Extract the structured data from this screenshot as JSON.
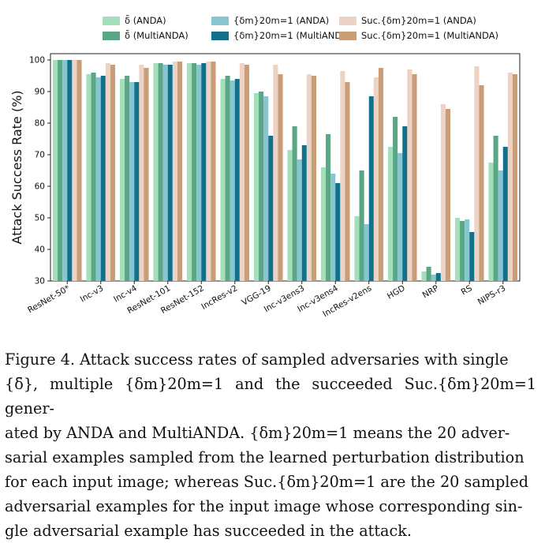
{
  "chart_data": {
    "type": "bar",
    "ylabel": "Attack Success Rate (%)",
    "xlabel": "",
    "ylim": [
      30,
      102
    ],
    "yticks": [
      30,
      40,
      50,
      60,
      70,
      80,
      90,
      100
    ],
    "grid": false,
    "legend_position": "top",
    "categories": [
      "ResNet-50*",
      "Inc-v3",
      "Inc-v4",
      "ResNet-101",
      "ResNet-152",
      "IncRes-v2",
      "VGG-19",
      "Inc-v3ens3",
      "Inc-v3ens4",
      "IncRes-v2ens",
      "HGD",
      "NRP",
      "RS",
      "NIPS-r3"
    ],
    "series": [
      {
        "name": "δ̄ (ANDA)",
        "color": "#a3dfb9",
        "values": [
          100,
          95.5,
          94,
          99,
          99,
          94,
          89.5,
          71.5,
          66,
          50.5,
          72.5,
          33,
          50,
          67.5
        ]
      },
      {
        "name": "δ̄ (MultiANDA)",
        "color": "#5aa685",
        "values": [
          100,
          96,
          95,
          99,
          99,
          95,
          90,
          79,
          76.5,
          65,
          82,
          34.5,
          49,
          76
        ]
      },
      {
        "name": "{δm}20m=1 (ANDA)",
        "color": "#87c6d0",
        "values": [
          100,
          94.5,
          93,
          98.5,
          98.5,
          93.5,
          88.5,
          68.5,
          64,
          48,
          70.5,
          32,
          49.5,
          65
        ]
      },
      {
        "name": "{δm}20m=1 (MultiANDA)",
        "color": "#12708a",
        "values": [
          100,
          95,
          93,
          98.5,
          99,
          94,
          76,
          73,
          61,
          88.5,
          79,
          32.5,
          45.5,
          72.5
        ]
      },
      {
        "name": "Suc.{δm}20m=1 (ANDA)",
        "color": "#ecd3c5",
        "values": [
          100,
          99,
          98.5,
          99.5,
          99.5,
          99,
          98.5,
          95.5,
          96.5,
          94.5,
          97,
          86,
          98,
          96
        ]
      },
      {
        "name": "Suc.{δm}20m=1 (MultiANDA)",
        "color": "#c99d77",
        "values": [
          100,
          98.5,
          97.5,
          99.5,
          99.5,
          98.5,
          95.5,
          95,
          93,
          97.5,
          95.5,
          84.5,
          92,
          95.5
        ]
      }
    ]
  },
  "caption": {
    "line1": "Figure 4. Attack success rates of sampled adversaries with single",
    "line2": "{δ̄}, multiple {δm}20m=1 and the succeeded Suc.{δm}20m=1 gener-",
    "line3": "ated by ANDA and MultiANDA. {δm}20m=1 means the 20 adver-",
    "line4": "sarial examples sampled from the learned perturbation distribution",
    "line5": "for each input image; whereas Suc.{δm}20m=1 are the 20 sampled",
    "line6": "adversarial examples for the input image whose corresponding sin-",
    "line7": "gle adversarial example has succeeded in the attack."
  }
}
